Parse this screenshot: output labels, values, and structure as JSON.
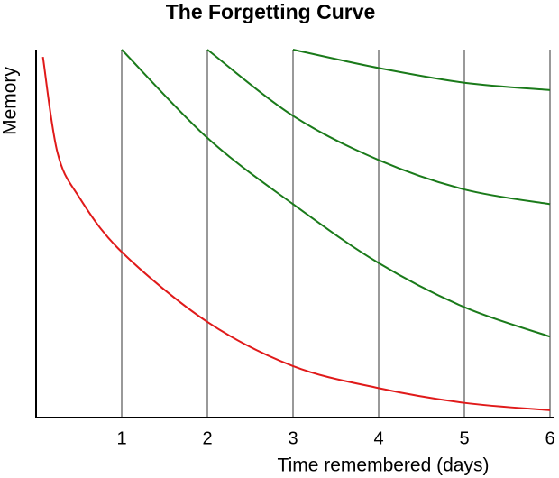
{
  "chart_data": {
    "type": "line",
    "title": "The Forgetting Curve",
    "xlabel": "Time remembered (days)",
    "ylabel": "Memory",
    "x": [
      0.08,
      0.25,
      0.5,
      1,
      2,
      3,
      4,
      5,
      6
    ],
    "series": [
      {
        "color": "#e01a1a",
        "values": [
          98,
          72,
          60,
          45,
          26,
          14,
          8,
          4,
          2
        ]
      },
      {
        "color": "#1a7a1a",
        "values": [
          null,
          null,
          null,
          100,
          76,
          58,
          42,
          30,
          22
        ]
      },
      {
        "color": "#1a7a1a",
        "values": [
          null,
          null,
          null,
          null,
          100,
          82,
          70,
          62,
          58
        ]
      },
      {
        "color": "#1a7a1a",
        "values": [
          null,
          null,
          null,
          null,
          null,
          100,
          95,
          91,
          89
        ]
      }
    ],
    "xlim": [
      0,
      6
    ],
    "xticks": [
      1,
      2,
      3,
      4,
      5,
      6
    ],
    "ylim": [
      0,
      100
    ],
    "grid": true
  }
}
